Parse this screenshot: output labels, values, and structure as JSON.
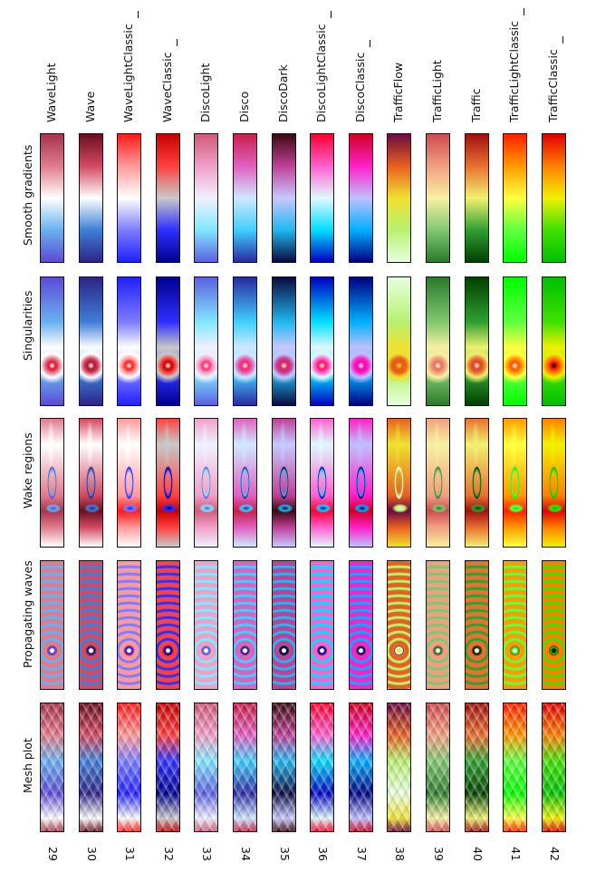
{
  "rows": [
    {
      "key": "grad",
      "label": "Smooth gradients"
    },
    {
      "key": "sing",
      "label": "Singularities"
    },
    {
      "key": "wake",
      "label": "Wake regions"
    },
    {
      "key": "wave",
      "label": "Propagating waves"
    },
    {
      "key": "mesh",
      "label": "Mesh plot"
    }
  ],
  "colormaps": [
    {
      "name": "WaveLight",
      "number": "29",
      "mark": false,
      "colors": [
        "#a8334d",
        "#e07b8c",
        "#ffffff",
        "#6ab0f0",
        "#5c4ad6"
      ],
      "accent": "#e01030",
      "hub": "#ffffff"
    },
    {
      "name": "Wave",
      "number": "30",
      "mark": false,
      "colors": [
        "#6a0f1e",
        "#d24a62",
        "#ffffff",
        "#3f7fd8",
        "#2e2486"
      ],
      "accent": "#b0102a",
      "hub": "#ffffff"
    },
    {
      "name": "WaveLightClassic",
      "number": "31",
      "mark": true,
      "colors": [
        "#ff1a1a",
        "#ff9a9a",
        "#ffffff",
        "#7d7dff",
        "#2020ff"
      ],
      "accent": "#ff1a1a",
      "hub": "#ffffff"
    },
    {
      "name": "WaveClassic",
      "number": "32",
      "mark": true,
      "colors": [
        "#c80000",
        "#ff4040",
        "#c8c8c8",
        "#3030ff",
        "#000090"
      ],
      "accent": "#c00000",
      "hub": "#ffffff"
    },
    {
      "name": "DiscoLight",
      "number": "33",
      "mark": false,
      "colors": [
        "#d05a7a",
        "#f0a0c8",
        "#f0f0ff",
        "#80e8ff",
        "#5a60e0"
      ],
      "accent": "#ff3070",
      "hub": "#ffffff"
    },
    {
      "name": "Disco",
      "number": "34",
      "mark": false,
      "colors": [
        "#c8204a",
        "#e060c0",
        "#d0e8ff",
        "#40d0ff",
        "#2a2aa0"
      ],
      "accent": "#ff2060",
      "hub": "#ffffff"
    },
    {
      "name": "DiscoDark",
      "number": "35",
      "mark": false,
      "colors": [
        "#3a0a10",
        "#c04098",
        "#c8c8ff",
        "#20b8f0",
        "#0a0a40"
      ],
      "accent": "#e02050",
      "hub": "#ffffff"
    },
    {
      "name": "DiscoLightClassic",
      "number": "36",
      "mark": true,
      "colors": [
        "#ff0030",
        "#ff60d0",
        "#e0f8ff",
        "#00e0ff",
        "#0000c0"
      ],
      "accent": "#ff1050",
      "hub": "#ffffff"
    },
    {
      "name": "DiscoClassic",
      "number": "37",
      "mark": true,
      "colors": [
        "#d00020",
        "#ff20c8",
        "#c0c0ff",
        "#00b0ff",
        "#000080"
      ],
      "accent": "#ff00a0",
      "hub": "#ffffff"
    },
    {
      "name": "TrafficFlow",
      "number": "38",
      "mark": false,
      "colors": [
        "#6a0a40",
        "#e86020",
        "#f0e030",
        "#b8f070",
        "#e8ffe0"
      ],
      "accent": "#e85a10",
      "hub": "#ffe030"
    },
    {
      "name": "TrafficLight",
      "number": "39",
      "mark": false,
      "colors": [
        "#d04a50",
        "#f0a080",
        "#f8f0a0",
        "#80c870",
        "#2a7a2a"
      ],
      "accent": "#e87050",
      "hub": "#ffffff"
    },
    {
      "name": "Traffic",
      "number": "40",
      "mark": false,
      "colors": [
        "#a01010",
        "#e87030",
        "#f0f070",
        "#30a030",
        "#004000"
      ],
      "accent": "#e04020",
      "hub": "#ffffff"
    },
    {
      "name": "TrafficLightClassic",
      "number": "41",
      "mark": true,
      "colors": [
        "#ff2000",
        "#ff9a00",
        "#ffff40",
        "#60ff40",
        "#00ff00"
      ],
      "accent": "#ff5000",
      "hub": "#ffffff"
    },
    {
      "name": "TrafficClassic",
      "number": "42",
      "mark": true,
      "colors": [
        "#e00000",
        "#ff8000",
        "#f0f000",
        "#40e000",
        "#00c000"
      ],
      "accent": "#ff2000",
      "hub": "#000000"
    }
  ]
}
